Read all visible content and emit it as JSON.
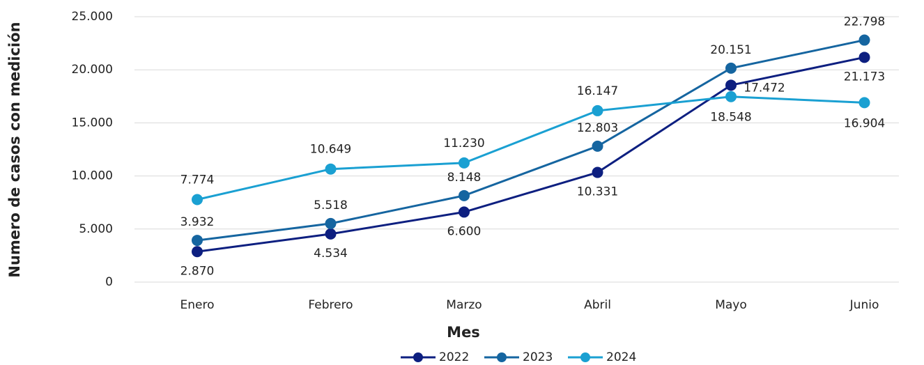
{
  "chart_data": {
    "type": "line",
    "x_label": "Mes",
    "y_label": "Numero de casos con medición",
    "categories": [
      "Enero",
      "Febrero",
      "Marzo",
      "Abril",
      "Mayo",
      "Junio"
    ],
    "series": [
      {
        "name": "2022",
        "color": "#0d1f80",
        "values": [
          2870,
          4534,
          6600,
          10331,
          18548,
          21173
        ],
        "value_labels": [
          "2.870",
          "4.534",
          "6.600",
          "10.331",
          "18.548",
          "21.173"
        ]
      },
      {
        "name": "2023",
        "color": "#1565a0",
        "values": [
          3932,
          5518,
          8148,
          12803,
          20151,
          22798
        ],
        "value_labels": [
          "3.932",
          "5.518",
          "8.148",
          "12.803",
          "20.151",
          "22.798"
        ]
      },
      {
        "name": "2024",
        "color": "#1aa0d2",
        "values": [
          7774,
          10649,
          11230,
          16147,
          17472,
          16904
        ],
        "value_labels": [
          "7.774",
          "10.649",
          "11.230",
          "16.147",
          "17.472",
          "16.904"
        ]
      }
    ],
    "ylim": [
      0,
      25000
    ],
    "yticks": [
      0,
      {
        "value": 5000,
        "label": "5.000"
      },
      {
        "value": 10000,
        "label": "10.000"
      },
      {
        "value": 15000,
        "label": "15.000"
      },
      {
        "value": 20000,
        "label": "20.000"
      },
      {
        "value": 25000,
        "label": "25.000"
      }
    ],
    "grid": true,
    "legend": "bottom"
  }
}
